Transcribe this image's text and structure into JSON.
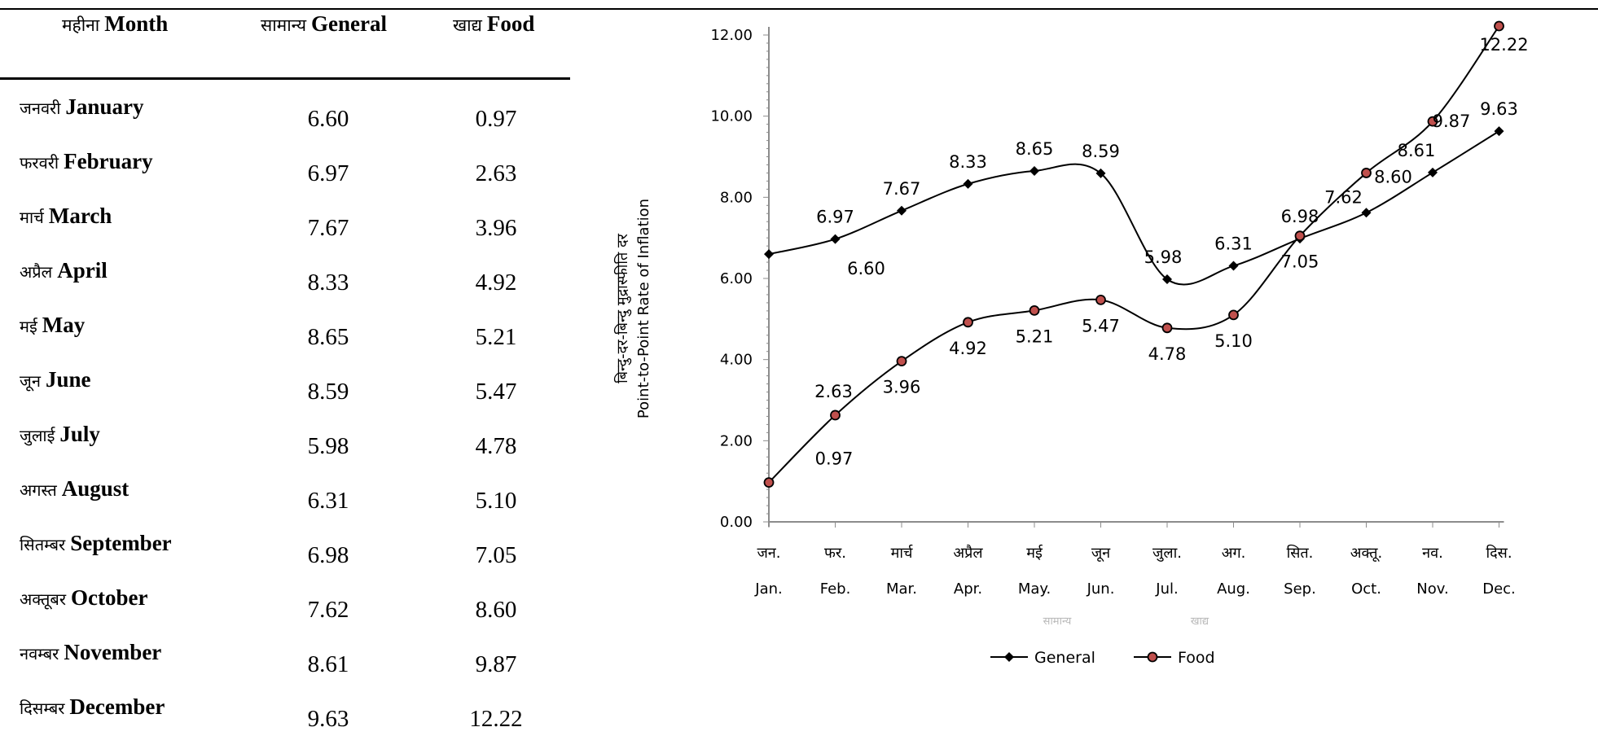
{
  "table": {
    "header": {
      "month_hi": "महीना",
      "month_en": "Month",
      "general_hi": "सामान्य",
      "general_en": "General",
      "food_hi": "खाद्य",
      "food_en": "Food"
    },
    "rows": [
      {
        "hi": "जनवरी",
        "en": "January",
        "general": "6.60",
        "food": "0.97"
      },
      {
        "hi": "फरवरी",
        "en": "February",
        "general": "6.97",
        "food": "2.63"
      },
      {
        "hi": "मार्च",
        "en": "March",
        "general": "7.67",
        "food": "3.96"
      },
      {
        "hi": "अप्रैल",
        "en": "April",
        "general": "8.33",
        "food": "4.92"
      },
      {
        "hi": "मई",
        "en": "May",
        "general": "8.65",
        "food": "5.21"
      },
      {
        "hi": "जून",
        "en": "June",
        "general": "8.59",
        "food": "5.47"
      },
      {
        "hi": "जुलाई",
        "en": "July",
        "general": "5.98",
        "food": "4.78"
      },
      {
        "hi": "अगस्त",
        "en": "August",
        "general": "6.31",
        "food": "5.10"
      },
      {
        "hi": "सितम्बर",
        "en": "September",
        "general": "6.98",
        "food": "7.05"
      },
      {
        "hi": "अक्तूबर",
        "en": "October",
        "general": "7.62",
        "food": "8.60"
      },
      {
        "hi": "नवम्बर",
        "en": "November",
        "general": "8.61",
        "food": "9.87"
      },
      {
        "hi": "दिसम्बर",
        "en": "December",
        "general": "9.63",
        "food": "12.22"
      }
    ]
  },
  "chart_data": {
    "type": "line",
    "categories_hi": [
      "जन.",
      "फर.",
      "मार्च",
      "अप्रैल",
      "मई",
      "जून",
      "जुला.",
      "अग.",
      "सित.",
      "अक्तू.",
      "नव.",
      "दिस."
    ],
    "categories": [
      "Jan.",
      "Feb.",
      "Mar.",
      "Apr.",
      "May.",
      "Jun.",
      "Jul.",
      "Aug.",
      "Sep.",
      "Oct.",
      "Nov.",
      "Dec."
    ],
    "ylabel_hi": "बिन्दु-दर-बिन्दु मुद्रास्फीति दर",
    "ylabel": "Point-to-Point Rate of Inflation",
    "xlabel_hi": [
      "सामान्य",
      "खाद्य"
    ],
    "ylim": [
      0,
      12
    ],
    "yticks": [
      "0.00",
      "2.00",
      "4.00",
      "6.00",
      "8.00",
      "10.00",
      "12.00"
    ],
    "legend_position": "bottom",
    "series": [
      {
        "name": "General",
        "marker": "diamond",
        "color": "#000000",
        "values": [
          6.6,
          6.97,
          7.67,
          8.33,
          8.65,
          8.59,
          5.98,
          6.31,
          6.98,
          7.62,
          8.61,
          9.63
        ],
        "labels": [
          "6.60",
          "6.97",
          "7.67",
          "8.33",
          "8.65",
          "8.59",
          "5.98",
          "6.31",
          "6.98",
          "7.62",
          "8.61",
          "9.63"
        ]
      },
      {
        "name": "Food",
        "marker": "circle",
        "color": "#000000",
        "marker_fill": "#c0504d",
        "values": [
          0.97,
          2.63,
          3.96,
          4.92,
          5.21,
          5.47,
          4.78,
          5.1,
          7.05,
          8.6,
          9.87,
          12.22
        ],
        "labels": [
          "0.97",
          "2.63",
          "3.96",
          "4.92",
          "5.21",
          "5.47",
          "4.78",
          "5.10",
          "7.05",
          "8.60",
          "9.87",
          "12.22"
        ]
      }
    ]
  }
}
